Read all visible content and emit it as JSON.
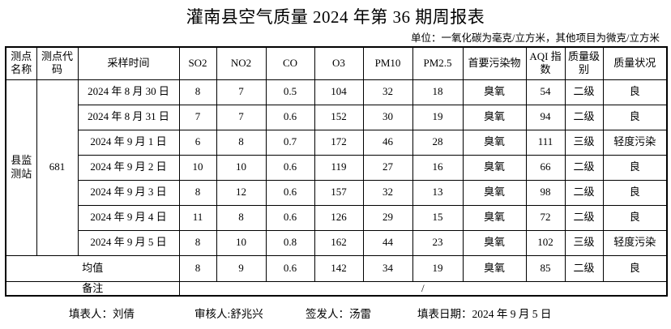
{
  "title": "灌南县空气质量 2024 年第 36 期周报表",
  "unit_note": "单位：一氧化碳为毫克/立方米，其他项目为微克/立方米",
  "table": {
    "headers": [
      "测点名称",
      "测点代码",
      "采样时间",
      "SO2",
      "NO2",
      "CO",
      "O3",
      "PM10",
      "PM2.5",
      "首要污染物",
      "AQI 指数",
      "质量级别",
      "质量状况"
    ],
    "station_name": "县监测站",
    "station_code": "681",
    "rows": [
      {
        "date": "2024 年 8 月 30 日",
        "so2": "8",
        "no2": "7",
        "co": "0.5",
        "o3": "104",
        "pm10": "32",
        "pm25": "18",
        "pollutant": "臭氧",
        "aqi": "54",
        "level": "二级",
        "status": "良"
      },
      {
        "date": "2024 年 8 月 31 日",
        "so2": "7",
        "no2": "7",
        "co": "0.6",
        "o3": "152",
        "pm10": "30",
        "pm25": "19",
        "pollutant": "臭氧",
        "aqi": "94",
        "level": "二级",
        "status": "良"
      },
      {
        "date": "2024 年 9 月 1 日",
        "so2": "6",
        "no2": "8",
        "co": "0.7",
        "o3": "172",
        "pm10": "46",
        "pm25": "28",
        "pollutant": "臭氧",
        "aqi": "111",
        "level": "三级",
        "status": "轻度污染"
      },
      {
        "date": "2024 年 9 月 2 日",
        "so2": "10",
        "no2": "10",
        "co": "0.6",
        "o3": "119",
        "pm10": "27",
        "pm25": "16",
        "pollutant": "臭氧",
        "aqi": "66",
        "level": "二级",
        "status": "良"
      },
      {
        "date": "2024 年 9 月 3 日",
        "so2": "8",
        "no2": "12",
        "co": "0.6",
        "o3": "157",
        "pm10": "32",
        "pm25": "13",
        "pollutant": "臭氧",
        "aqi": "98",
        "level": "二级",
        "status": "良"
      },
      {
        "date": "2024 年 9 月 4 日",
        "so2": "11",
        "no2": "8",
        "co": "0.6",
        "o3": "126",
        "pm10": "29",
        "pm25": "15",
        "pollutant": "臭氧",
        "aqi": "72",
        "level": "二级",
        "status": "良"
      },
      {
        "date": "2024 年 9 月 5 日",
        "so2": "8",
        "no2": "10",
        "co": "0.8",
        "o3": "162",
        "pm10": "44",
        "pm25": "23",
        "pollutant": "臭氧",
        "aqi": "102",
        "level": "三级",
        "status": "轻度污染"
      }
    ],
    "average": {
      "label": "均值",
      "so2": "8",
      "no2": "9",
      "co": "0.6",
      "o3": "142",
      "pm10": "34",
      "pm25": "19",
      "pollutant": "臭氧",
      "aqi": "85",
      "level": "二级",
      "status": "良"
    },
    "remark": {
      "label": "备注",
      "value": "/"
    }
  },
  "footer": {
    "preparer": "填表人：刘倩",
    "reviewer": "审核人:舒兆兴",
    "issuer": "签发人：汤雷",
    "fill_date": "填表日期：2024 年 9 月 5 日"
  }
}
